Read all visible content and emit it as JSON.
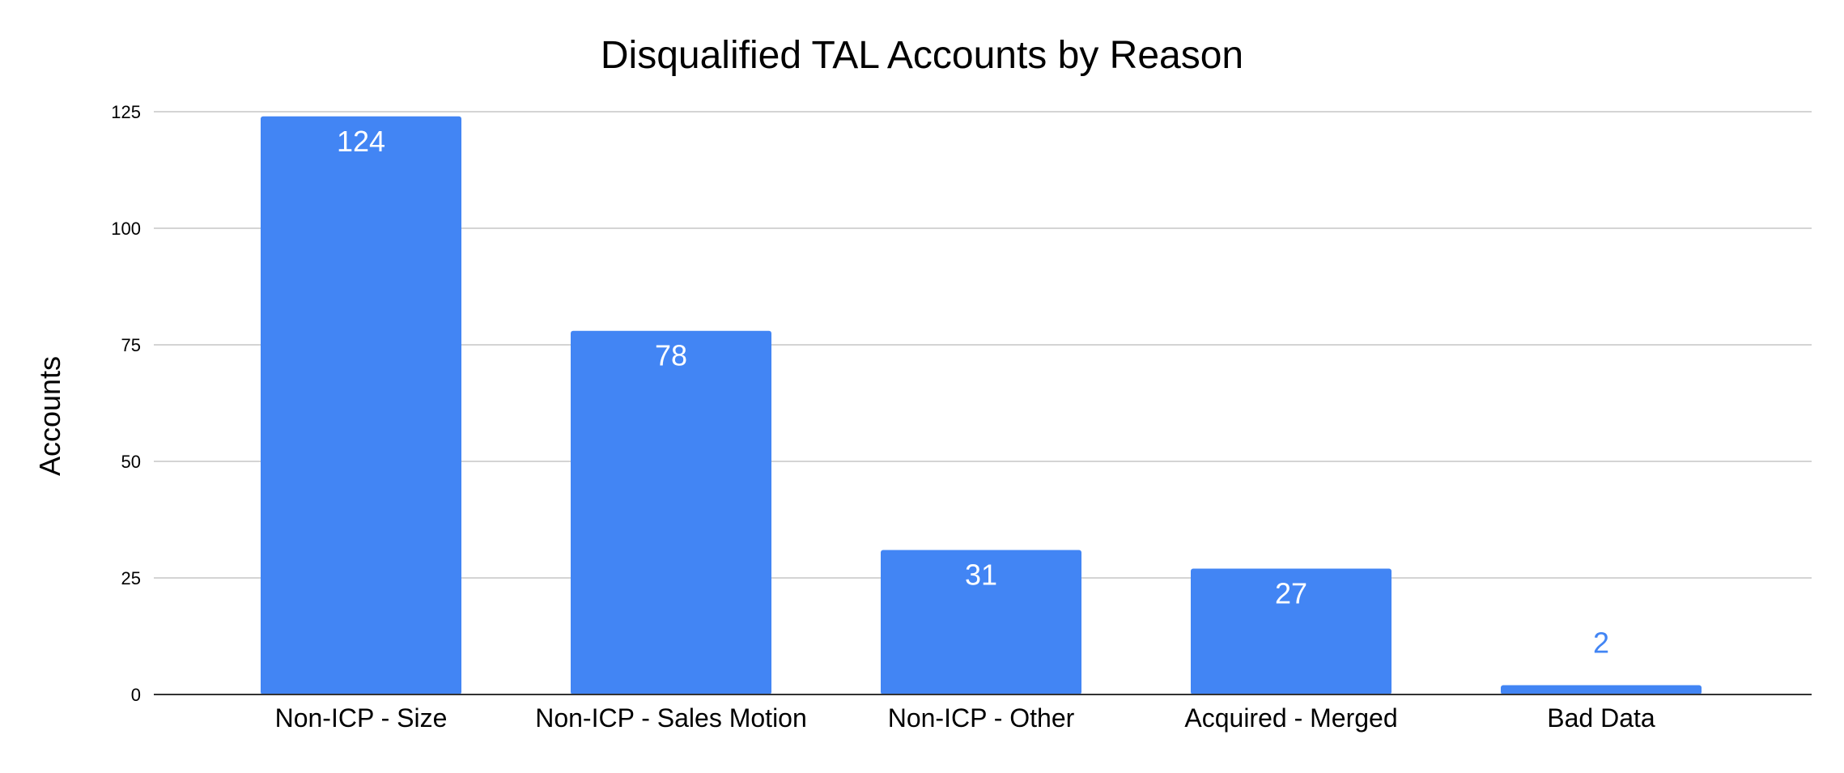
{
  "chart_data": {
    "type": "bar",
    "title": "Disqualified TAL Accounts by Reason",
    "xlabel": "",
    "ylabel": "Accounts",
    "categories": [
      "Non-ICP - Size",
      "Non-ICP - Sales Motion",
      "Non-ICP - Other",
      "Acquired - Merged",
      "Bad Data"
    ],
    "values": [
      124,
      78,
      31,
      27,
      2
    ],
    "data_labels": [
      "124",
      "78",
      "31",
      "27",
      "2"
    ],
    "ylim": [
      0,
      125
    ],
    "yticks": [
      0,
      25,
      50,
      75,
      100,
      125
    ],
    "grid": true,
    "legend": "none",
    "colors": {
      "bar": "#4285f4",
      "label_inside": "#ffffff",
      "label_outside": "#4285f4"
    }
  }
}
